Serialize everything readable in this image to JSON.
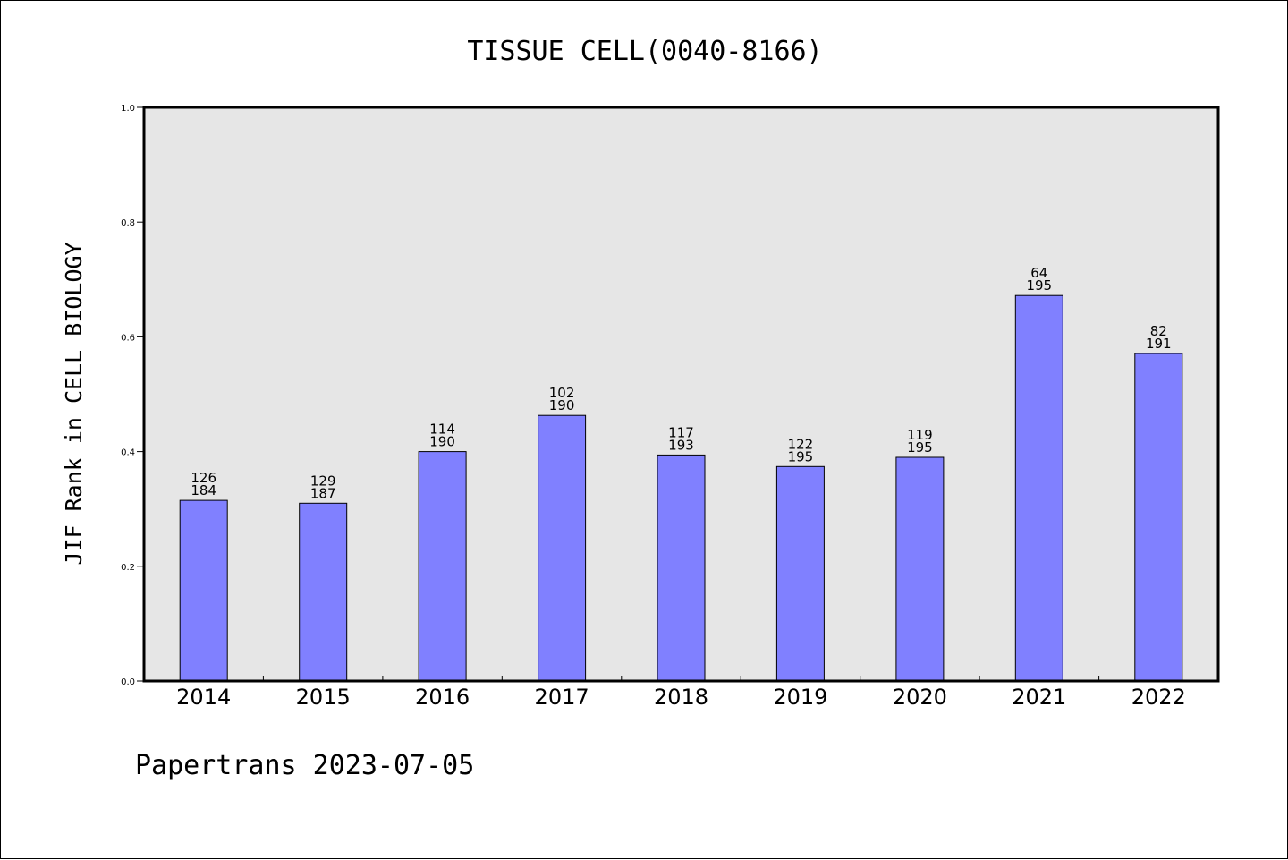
{
  "chart_data": {
    "type": "bar",
    "title": "TISSUE CELL(0040-8166)",
    "ylabel": "JIF Rank in CELL BIOLOGY",
    "xlabel": "",
    "footer": "Papertrans 2023-07-05",
    "categories": [
      "2014",
      "2015",
      "2016",
      "2017",
      "2018",
      "2019",
      "2020",
      "2021",
      "2022"
    ],
    "values": [
      0.315,
      0.31,
      0.4,
      0.463,
      0.394,
      0.374,
      0.39,
      0.672,
      0.571
    ],
    "rank": [
      "126",
      "129",
      "114",
      "102",
      "117",
      "122",
      "119",
      "64",
      "82"
    ],
    "total": [
      "184",
      "187",
      "190",
      "190",
      "193",
      "195",
      "195",
      "195",
      "191"
    ],
    "ylim": [
      0,
      1.0
    ],
    "yticks": [
      "0.0",
      "0.2",
      "0.4",
      "0.6",
      "0.8",
      "1.0"
    ],
    "grid": false,
    "colors": {
      "bar": "#8080ff",
      "plot_background": "#e6e6e6",
      "axis": "#000000"
    }
  }
}
